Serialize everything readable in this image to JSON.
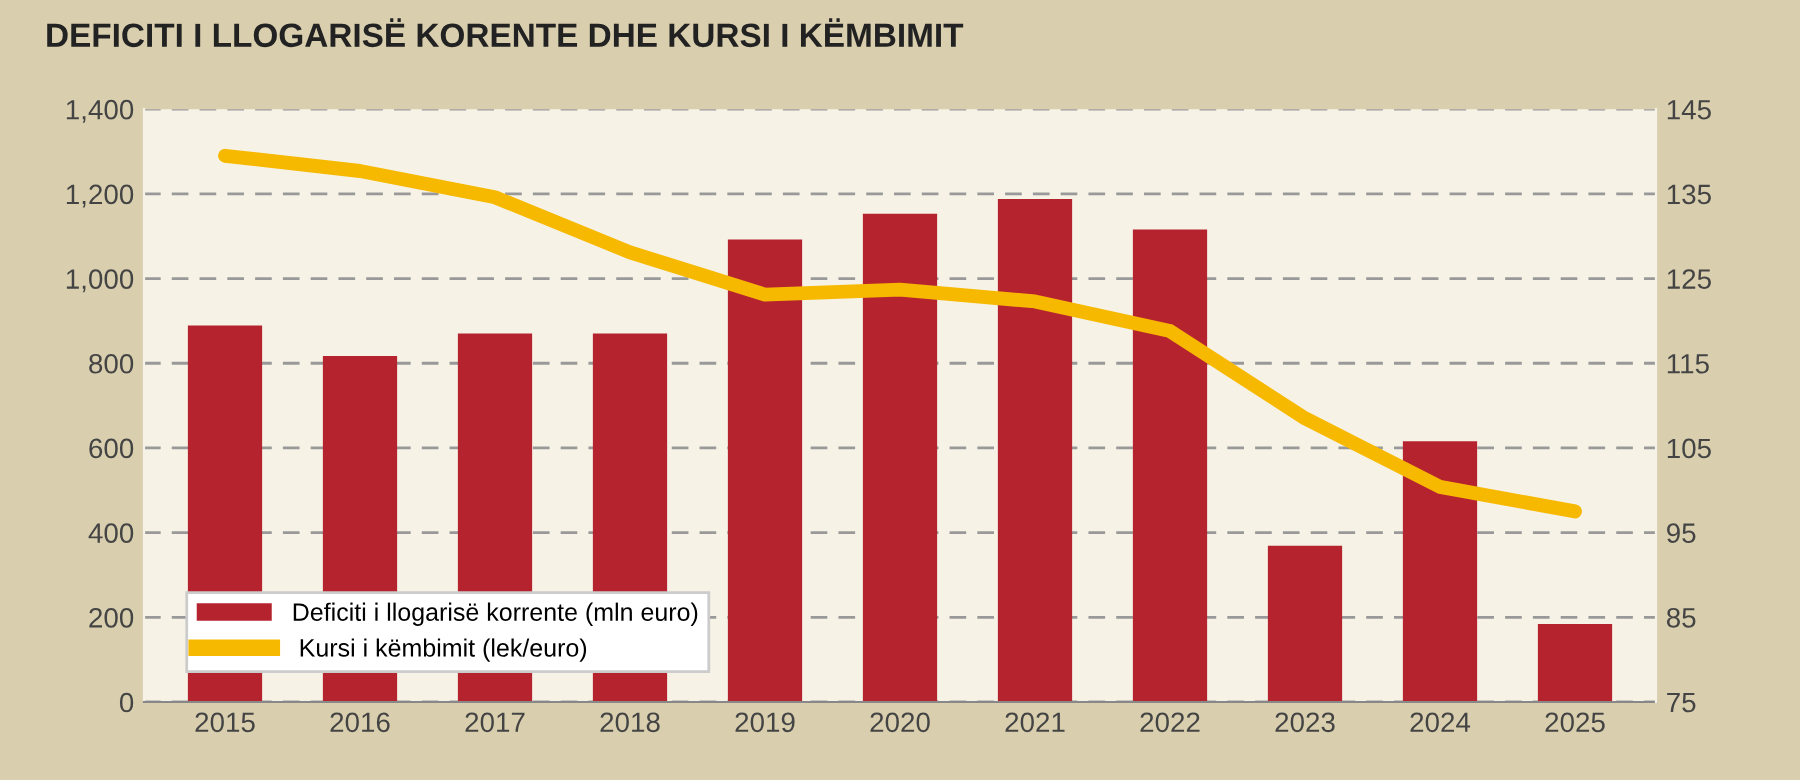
{
  "chart_data": {
    "type": "bar",
    "title": "DEFICITI I LLOGARISË KORENTE DHE KURSI I KËMBIMIT",
    "categories": [
      "2015",
      "2016",
      "2017",
      "2018",
      "2019",
      "2020",
      "2021",
      "2022",
      "2023",
      "2024",
      "2025"
    ],
    "series": [
      {
        "name": "Deficiti i llogarisë korrente (mln euro)",
        "color": "#b5232f",
        "values": [
          889,
          817,
          870,
          870,
          1092,
          1153,
          1188,
          1116,
          369,
          616,
          184
        ]
      },
      {
        "name": " Kursi i këmbimit (lek/euro)",
        "type": "line",
        "axis": "y2",
        "color": "#f7b900",
        "values": [
          139.5,
          137.7,
          134.6,
          128.1,
          123.1,
          123.7,
          122.3,
          118.8,
          108.5,
          100.4,
          97.5
        ]
      }
    ],
    "ylim": [
      0,
      1400
    ],
    "yticks": [
      0,
      {
        "value": 200,
        "label": "200"
      },
      {
        "value": 400,
        "label": "400"
      },
      {
        "value": 600,
        "label": "600"
      },
      {
        "value": 800,
        "label": "800"
      },
      {
        "value": 1000,
        "label": "1,000"
      },
      {
        "value": 1200,
        "label": "1,200"
      },
      {
        "value": 1400,
        "label": "1,400"
      }
    ],
    "y2lim": [
      75,
      145
    ],
    "y2ticks": [
      75,
      85,
      95,
      105,
      115,
      125,
      135,
      145
    ],
    "grid": "y",
    "legend": "bottom left",
    "marker": "none"
  }
}
